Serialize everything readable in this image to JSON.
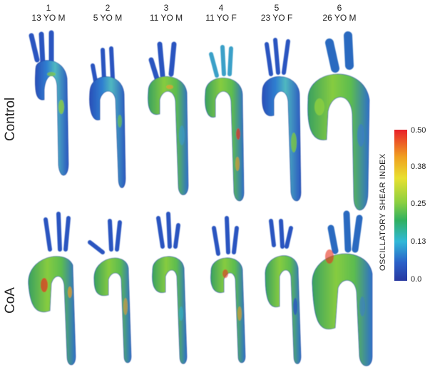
{
  "columns": [
    {
      "number": "1",
      "subject": "13 YO M"
    },
    {
      "number": "2",
      "subject": "5 YO M"
    },
    {
      "number": "3",
      "subject": "11 YO M"
    },
    {
      "number": "4",
      "subject": "11 YO F"
    },
    {
      "number": "5",
      "subject": "23 YO F"
    },
    {
      "number": "6",
      "subject": "26 YO M"
    }
  ],
  "rows": [
    {
      "label": "Control"
    },
    {
      "label": "CoA"
    }
  ],
  "colorbar": {
    "title": "OSCILLATORY SHEAR INDEX",
    "ticks": [
      "0.50",
      "0.38",
      "0.25",
      "0.13",
      "0.0"
    ],
    "colors": [
      "#e8202a",
      "#f0a020",
      "#e8e030",
      "#8cd040",
      "#30b060",
      "#30b8d8",
      "#2a60c8",
      "#2838a0"
    ]
  },
  "palette": {
    "vessel_base": "#2a5cc0",
    "vessel_mid": "#36b0d0",
    "vessel_green": "#7cc840",
    "hot": "#e83020"
  }
}
